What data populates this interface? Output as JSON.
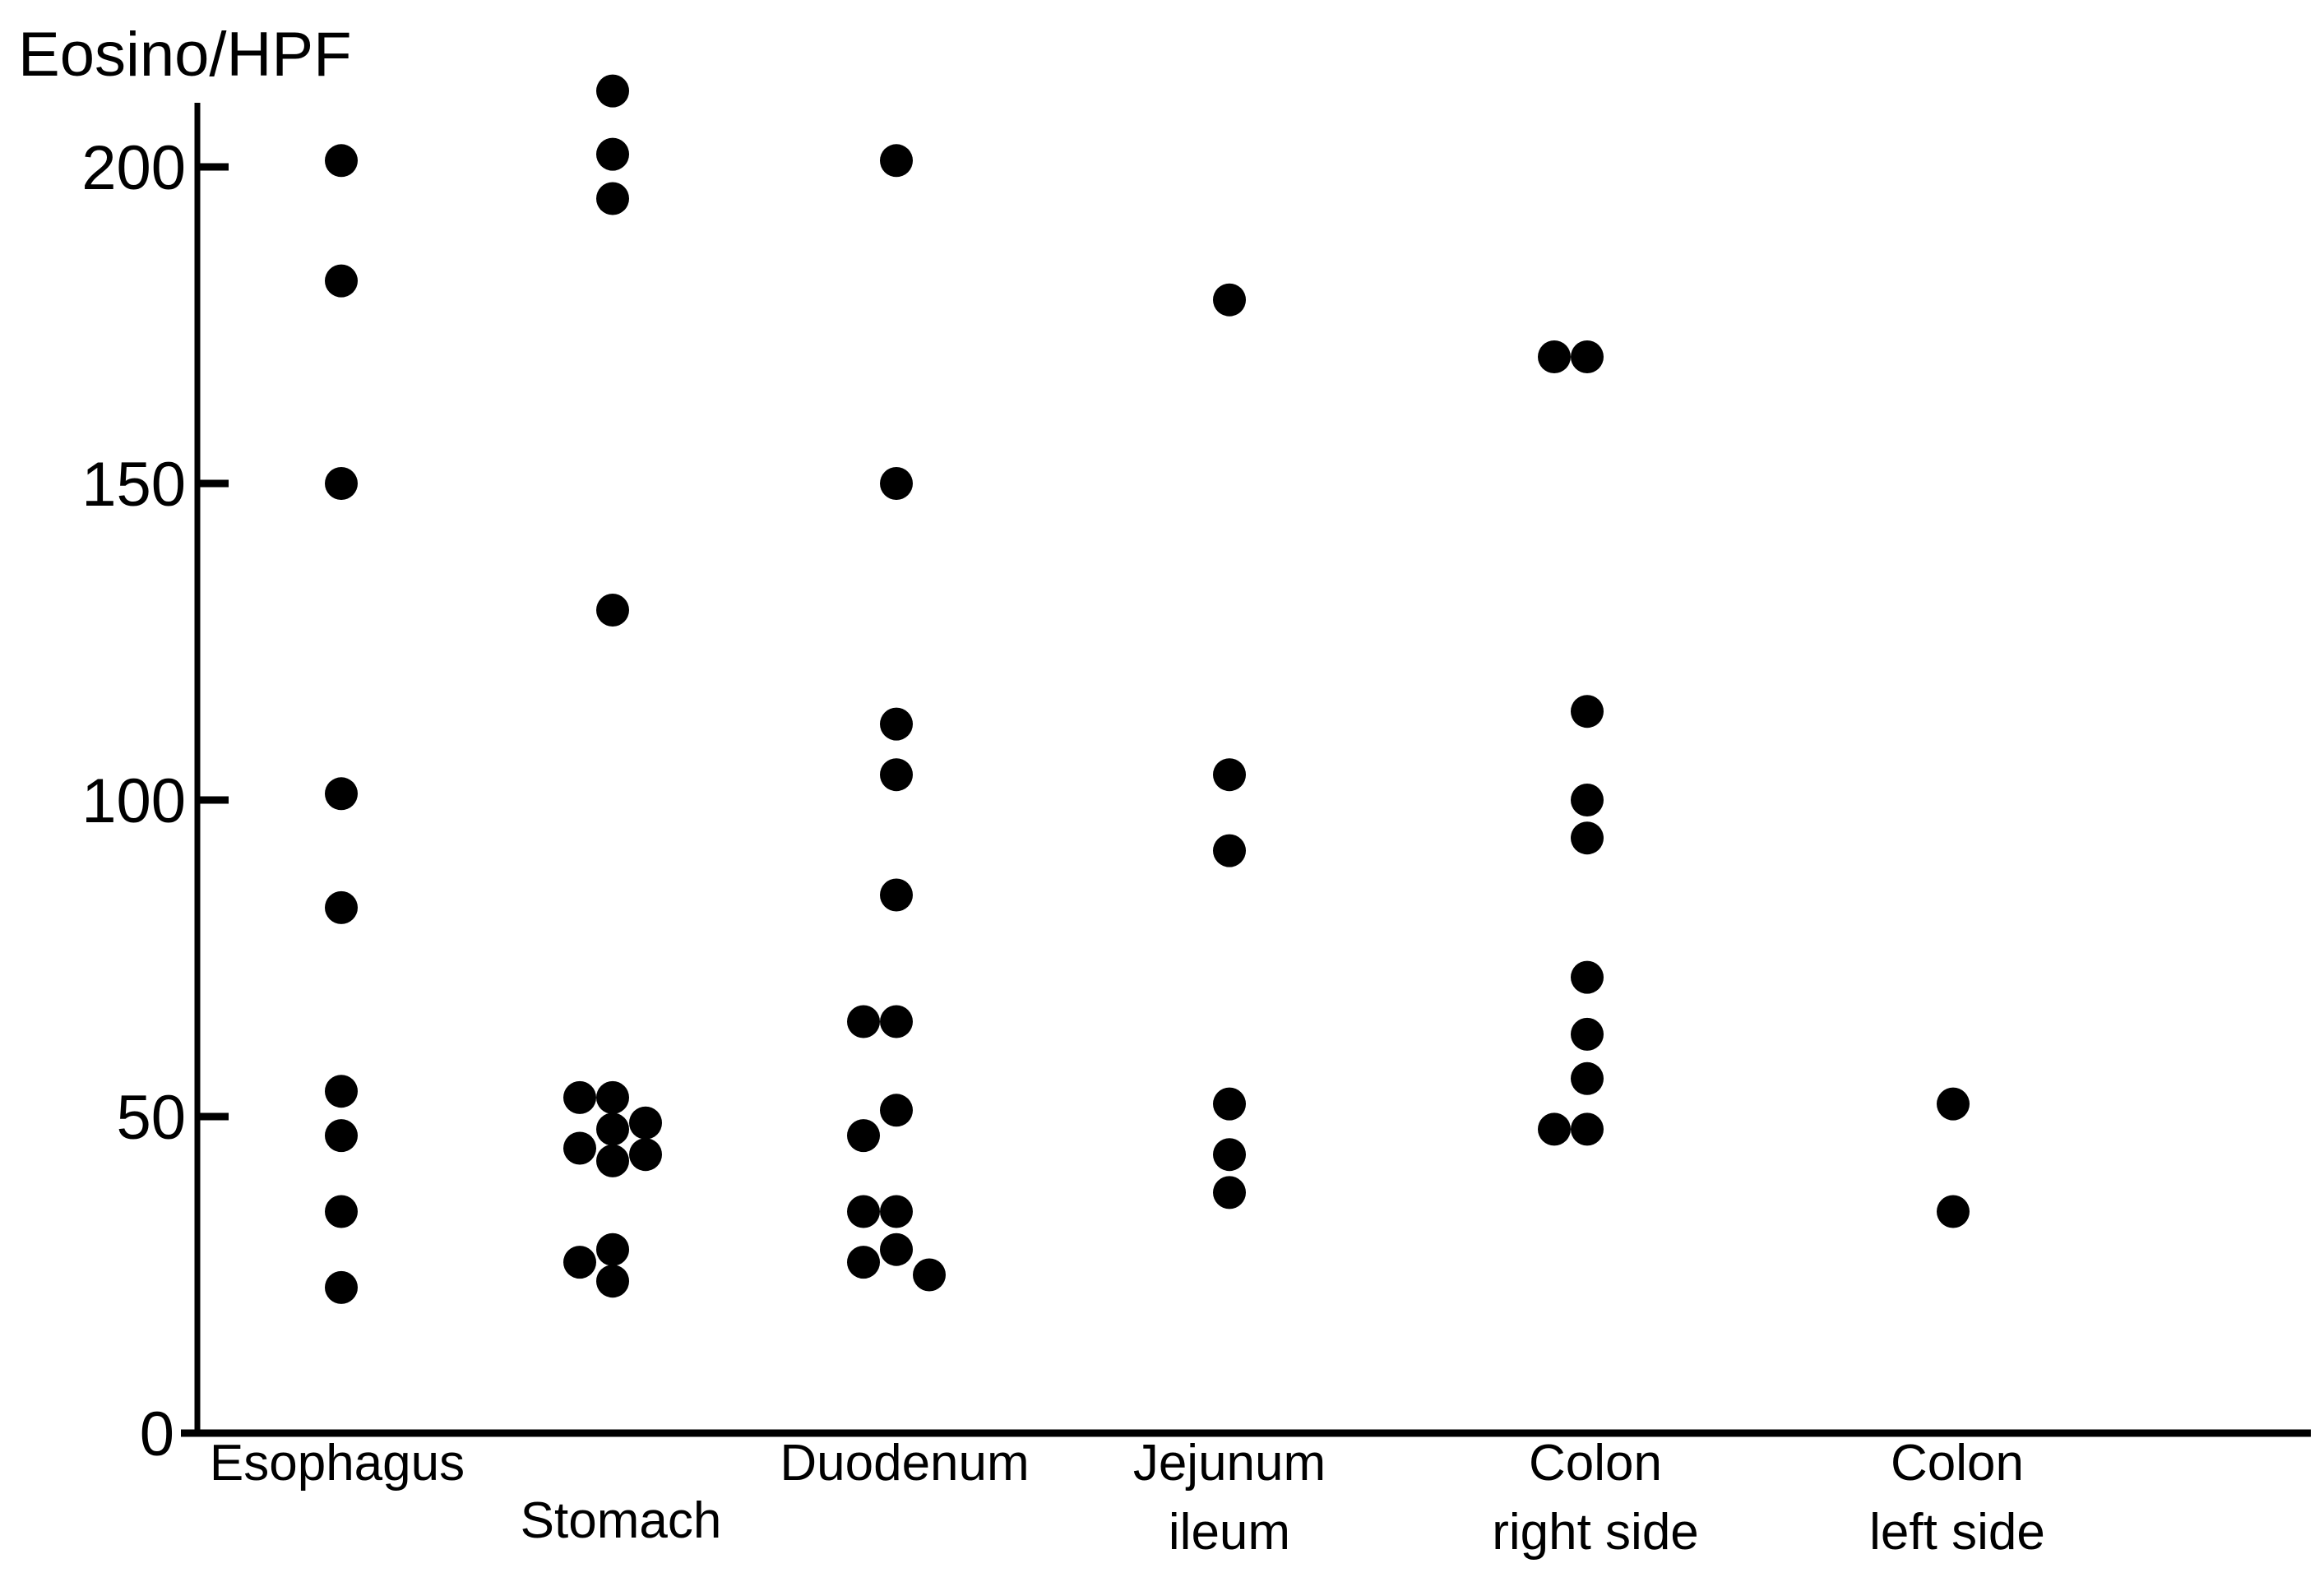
{
  "chart_data": {
    "type": "scatter",
    "title": "",
    "xlabel": "",
    "ylabel": "Eosino/HPF",
    "ylim": [
      0,
      210
    ],
    "yticks": [
      0,
      50,
      100,
      150,
      200
    ],
    "grid": false,
    "legend": "none",
    "colors": {
      "point": "#000000",
      "axis": "#000000",
      "background": "#ffffff"
    },
    "categories": [
      {
        "lines": [
          "Esophagus"
        ]
      },
      {
        "lines": [
          "Stomach"
        ]
      },
      {
        "lines": [
          "Duodenum"
        ]
      },
      {
        "lines": [
          "Jejunum",
          "ileum"
        ]
      },
      {
        "lines": [
          "Colon",
          "right side"
        ]
      },
      {
        "lines": [
          "Colon",
          "left side"
        ]
      }
    ],
    "points": [
      {
        "cat": "Esophagus",
        "y": 201
      },
      {
        "cat": "Esophagus",
        "y": 182
      },
      {
        "cat": "Esophagus",
        "y": 150
      },
      {
        "cat": "Esophagus",
        "y": 101
      },
      {
        "cat": "Esophagus",
        "y": 83
      },
      {
        "cat": "Esophagus",
        "y": 54
      },
      {
        "cat": "Esophagus",
        "y": 47
      },
      {
        "cat": "Esophagus",
        "y": 35
      },
      {
        "cat": "Esophagus",
        "y": 23
      },
      {
        "cat": "Stomach",
        "y": 212
      },
      {
        "cat": "Stomach",
        "y": 202
      },
      {
        "cat": "Stomach",
        "y": 195
      },
      {
        "cat": "Stomach",
        "y": 130
      },
      {
        "cat": "Stomach",
        "y": 53
      },
      {
        "cat": "Stomach",
        "y": 53
      },
      {
        "cat": "Stomach",
        "y": 49
      },
      {
        "cat": "Stomach",
        "y": 48
      },
      {
        "cat": "Stomach",
        "y": 45
      },
      {
        "cat": "Stomach",
        "y": 44
      },
      {
        "cat": "Stomach",
        "y": 43
      },
      {
        "cat": "Stomach",
        "y": 29
      },
      {
        "cat": "Stomach",
        "y": 27
      },
      {
        "cat": "Stomach",
        "y": 24
      },
      {
        "cat": "Duodenum",
        "y": 201
      },
      {
        "cat": "Duodenum",
        "y": 150
      },
      {
        "cat": "Duodenum",
        "y": 112
      },
      {
        "cat": "Duodenum",
        "y": 104
      },
      {
        "cat": "Duodenum",
        "y": 85
      },
      {
        "cat": "Duodenum",
        "y": 65
      },
      {
        "cat": "Duodenum",
        "y": 65
      },
      {
        "cat": "Duodenum",
        "y": 51
      },
      {
        "cat": "Duodenum",
        "y": 47
      },
      {
        "cat": "Duodenum",
        "y": 35
      },
      {
        "cat": "Duodenum",
        "y": 35
      },
      {
        "cat": "Duodenum",
        "y": 29
      },
      {
        "cat": "Duodenum",
        "y": 27
      },
      {
        "cat": "Duodenum",
        "y": 25
      },
      {
        "cat": "Jejunum ileum",
        "y": 179
      },
      {
        "cat": "Jejunum ileum",
        "y": 104
      },
      {
        "cat": "Jejunum ileum",
        "y": 92
      },
      {
        "cat": "Jejunum ileum",
        "y": 52
      },
      {
        "cat": "Jejunum ileum",
        "y": 44
      },
      {
        "cat": "Jejunum ileum",
        "y": 38
      },
      {
        "cat": "Colon right side",
        "y": 170
      },
      {
        "cat": "Colon right side",
        "y": 170
      },
      {
        "cat": "Colon right side",
        "y": 114
      },
      {
        "cat": "Colon right side",
        "y": 100
      },
      {
        "cat": "Colon right side",
        "y": 94
      },
      {
        "cat": "Colon right side",
        "y": 72
      },
      {
        "cat": "Colon right side",
        "y": 63
      },
      {
        "cat": "Colon right side",
        "y": 56
      },
      {
        "cat": "Colon right side",
        "y": 48
      },
      {
        "cat": "Colon right side",
        "y": 48
      },
      {
        "cat": "Colon left side",
        "y": 52
      },
      {
        "cat": "Colon left side",
        "y": 35
      }
    ]
  }
}
